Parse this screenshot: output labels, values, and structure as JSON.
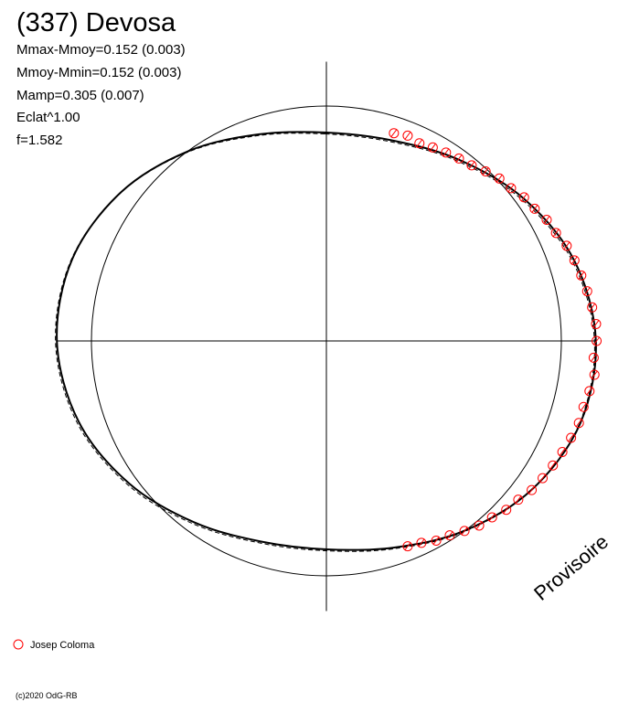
{
  "chart_data": {
    "type": "polar",
    "title": "(337) Devosa",
    "stats": [
      "Mmax-Mmoy=0.152 (0.003)",
      "Mmoy-Mmin=0.152 (0.003)",
      "Mamp=0.305 (0.007)",
      "Eclat^1.00",
      "f=1.582"
    ],
    "watermark": "Provisoire",
    "footer": "(c)2020 OdG-RB",
    "rlim": [
      -1,
      0.15
    ],
    "rticks": [
      0
    ],
    "curve": {
      "color": "#000000",
      "x": [
        0,
        0.05,
        0.1,
        0.15,
        0.2,
        0.25,
        0.3,
        0.35,
        0.4,
        0.45,
        0.5,
        0.55,
        0.6,
        0.65,
        0.7,
        0.75,
        0.8,
        0.85,
        0.9,
        0.95
      ],
      "values": [
        -0.113,
        -0.102,
        -0.045,
        0.035,
        0.109,
        0.147,
        0.136,
        0.079,
        -0.001,
        -0.075,
        -0.113,
        -0.102,
        -0.045,
        0.035,
        0.109,
        0.147,
        0.136,
        0.079,
        -0.001,
        -0.075
      ]
    },
    "series": [
      {
        "name": "Josep Coloma",
        "color": "#ff0000",
        "x": [
          0.05,
          0.06,
          0.07,
          0.08,
          0.09,
          0.1,
          0.11,
          0.12,
          0.13,
          0.14,
          0.15,
          0.16,
          0.17,
          0.18,
          0.19,
          0.2,
          0.21,
          0.22,
          0.23,
          0.24,
          0.25,
          0.26,
          0.27,
          0.28,
          0.29,
          0.3,
          0.31,
          0.32,
          0.33,
          0.34,
          0.35,
          0.36,
          0.37,
          0.38,
          0.39,
          0.4,
          0.41,
          0.42,
          0.43,
          0.44
        ],
        "values": [
          -0.07,
          -0.06,
          -0.07,
          -0.06,
          -0.05,
          -0.04,
          -0.03,
          -0.01,
          0.01,
          0.02,
          0.04,
          0.05,
          0.07,
          0.08,
          0.1,
          0.11,
          0.12,
          0.13,
          0.14,
          0.15,
          0.15,
          0.14,
          0.15,
          0.14,
          0.13,
          0.13,
          0.12,
          0.11,
          0.1,
          0.09,
          0.08,
          0.06,
          0.05,
          0.03,
          0.02,
          0.0,
          -0.02,
          -0.03,
          -0.05,
          -0.06
        ]
      }
    ]
  }
}
